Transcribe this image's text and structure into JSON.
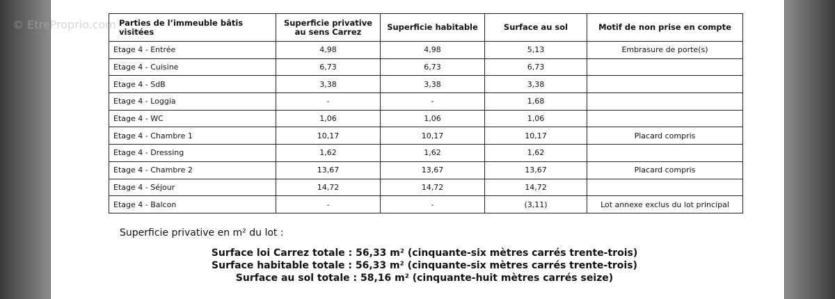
{
  "watermark": "© EtreProprio.com",
  "table": {
    "header": [
      "Parties de l’immeuble bâtis visitées",
      "Superficie privative au sens Carrez",
      "Superficie habitable",
      "Surface au sol",
      "Motif de non prise en compte"
    ],
    "rows": [
      {
        "cells": [
          "Etage 4 - Entrée",
          "4,98",
          "4,98",
          "5,13"
        ],
        "motif": "Embrasure de porte(s)"
      },
      {
        "cells": [
          "Etage 4 - Cuisine",
          "6,73",
          "6,73",
          "6,73"
        ]
      },
      {
        "cells": [
          "Etage 4 - SdB",
          "3,38",
          "3,38",
          "3,38"
        ]
      },
      {
        "cells": [
          "Etage 4 - Loggia",
          "-",
          "-",
          "1,68"
        ]
      },
      {
        "cells": [
          "Etage 4 - WC",
          "1,06",
          "1,06",
          "1,06"
        ]
      },
      {
        "cells": [
          "Etage 4 - Chambre 1",
          "10,17",
          "10,17",
          "10,17"
        ],
        "motif": "Placard compris"
      },
      {
        "cells": [
          "Etage 4 - Dressing",
          "1,62",
          "1,62",
          "1,62"
        ]
      },
      {
        "cells": [
          "Etage 4 - Chambre 2",
          "13,67",
          "13,67",
          "13,67"
        ],
        "motif": "Placard compris"
      },
      {
        "cells": [
          "Etage 4 - Séjour",
          "14,72",
          "14,72",
          "14,72"
        ]
      },
      {
        "cells": [
          "Etage 4 - Balcon",
          "-",
          "-",
          "(3,11)"
        ],
        "motif": "Lot annexe exclus du lot principal"
      }
    ]
  },
  "summary": {
    "intro": "Superficie privative en m² du lot :",
    "totals": [
      "Surface loi Carrez totale : 56,33 m² (cinquante-six mètres carrés trente-trois)",
      "Surface habitable totale : 56,33 m² (cinquante-six mètres carrés trente-trois)",
      "Surface au sol totale : 58,16 m² (cinquante-huit mètres carrés seize)"
    ]
  }
}
